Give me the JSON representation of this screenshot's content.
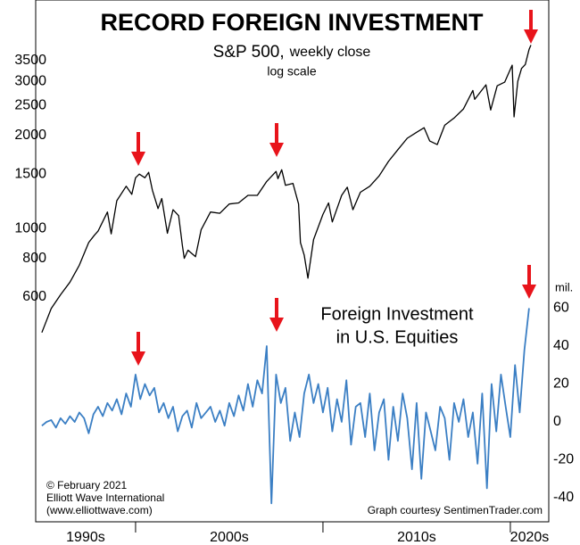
{
  "chart_data": {
    "type": "line",
    "title": "RECORD FOREIGN INVESTMENT",
    "subtitle": [
      "S&P 500,",
      "weekly close"
    ],
    "scale_note": "log scale",
    "annotation": [
      "Foreign Investment",
      "in U.S. Equities"
    ],
    "y2_unit": "mil.",
    "credits": [
      "© February 2021",
      "Elliott Wave International",
      "(www.elliottwave.com)"
    ],
    "source": "Graph courtesy SentimenTrader.com",
    "decades": [
      {
        "value": 1990,
        "label": "1990s"
      },
      {
        "value": 2000,
        "label": "2000s"
      },
      {
        "value": 2010,
        "label": "2010s"
      },
      {
        "value": 2020,
        "label": "2020s"
      }
    ],
    "xlim": [
      1994.67,
      2022.05
    ],
    "xticks": [
      2000,
      2010,
      2020
    ],
    "ylim": [
      112,
      5500
    ],
    "log_scale": true,
    "yticks": [
      600,
      800,
      1000,
      1500,
      2000,
      2500,
      3000,
      3500
    ],
    "y2lim": [
      -52.7,
      222.6
    ],
    "y2ticks": [
      -40,
      -20,
      0,
      20,
      40,
      60
    ],
    "series": [
      {
        "color": "#000000",
        "axis": "y",
        "x": [
          1995.0,
          1995.5,
          1996.0,
          1996.5,
          1997.0,
          1997.5,
          1997.8,
          1998.0,
          1998.5,
          1998.7,
          1999.0,
          1999.5,
          1999.8,
          2000.0,
          2000.2,
          2000.5,
          2000.7,
          2000.9,
          2001.2,
          2001.4,
          2001.7,
          2002.0,
          2002.3,
          2002.5,
          2002.6,
          2002.8,
          2003.2,
          2003.5,
          2004.0,
          2004.5,
          2005.0,
          2005.5,
          2006.0,
          2006.5,
          2007.0,
          2007.5,
          2007.6,
          2007.8,
          2008.0,
          2008.4,
          2008.7,
          2008.8,
          2009.0,
          2009.2,
          2009.5,
          2010.0,
          2010.3,
          2010.5,
          2011.0,
          2011.3,
          2011.6,
          2012.0,
          2012.5,
          2013.0,
          2013.5,
          2014.0,
          2014.5,
          2015.0,
          2015.4,
          2015.7,
          2016.1,
          2016.5,
          2017.0,
          2017.5,
          2018.0,
          2018.1,
          2018.7,
          2018.95,
          2019.3,
          2019.7,
          2020.0,
          2020.1,
          2020.2,
          2020.4,
          2020.6,
          2020.8,
          2021.0,
          2021.1
        ],
        "values": [
          460,
          550,
          610,
          670,
          760,
          900,
          950,
          980,
          1130,
          960,
          1230,
          1370,
          1290,
          1460,
          1500,
          1460,
          1520,
          1330,
          1160,
          1250,
          965,
          1150,
          1100,
          880,
          800,
          850,
          810,
          990,
          1130,
          1120,
          1200,
          1210,
          1280,
          1280,
          1420,
          1530,
          1450,
          1550,
          1380,
          1400,
          1200,
          900,
          820,
          690,
          920,
          1110,
          1210,
          1050,
          1280,
          1360,
          1150,
          1310,
          1370,
          1480,
          1650,
          1800,
          1960,
          2050,
          2120,
          1920,
          1870,
          2160,
          2280,
          2440,
          2800,
          2620,
          2920,
          2420,
          2900,
          2980,
          3280,
          3380,
          2300,
          3000,
          3300,
          3400,
          3800,
          3930
        ]
      },
      {
        "color": "#3b7fc4",
        "axis": "y2",
        "x": [
          1995.0,
          1995.25,
          1995.5,
          1995.75,
          1996.0,
          1996.25,
          1996.5,
          1996.75,
          1997.0,
          1997.25,
          1997.5,
          1997.75,
          1998.0,
          1998.25,
          1998.5,
          1998.75,
          1999.0,
          1999.25,
          1999.5,
          1999.75,
          2000.0,
          2000.25,
          2000.5,
          2000.75,
          2001.0,
          2001.25,
          2001.5,
          2001.75,
          2002.0,
          2002.25,
          2002.5,
          2002.75,
          2003.0,
          2003.25,
          2003.5,
          2003.75,
          2004.0,
          2004.25,
          2004.5,
          2004.75,
          2005.0,
          2005.25,
          2005.5,
          2005.75,
          2006.0,
          2006.25,
          2006.5,
          2006.75,
          2007.0,
          2007.25,
          2007.5,
          2007.75,
          2008.0,
          2008.25,
          2008.5,
          2008.75,
          2009.0,
          2009.25,
          2009.5,
          2009.75,
          2010.0,
          2010.25,
          2010.5,
          2010.75,
          2011.0,
          2011.25,
          2011.5,
          2011.75,
          2012.0,
          2012.25,
          2012.5,
          2012.75,
          2013.0,
          2013.25,
          2013.5,
          2013.75,
          2014.0,
          2014.25,
          2014.5,
          2014.75,
          2015.0,
          2015.25,
          2015.5,
          2015.75,
          2016.0,
          2016.25,
          2016.5,
          2016.75,
          2017.0,
          2017.25,
          2017.5,
          2017.75,
          2018.0,
          2018.25,
          2018.5,
          2018.75,
          2019.0,
          2019.25,
          2019.5,
          2019.75,
          2020.0,
          2020.25,
          2020.5,
          2020.75,
          2021.0
        ],
        "values": [
          -2,
          0,
          1,
          -3,
          2,
          -1,
          3,
          0,
          5,
          2,
          -6,
          4,
          8,
          3,
          10,
          6,
          12,
          4,
          15,
          8,
          25,
          12,
          20,
          14,
          18,
          5,
          10,
          2,
          8,
          -5,
          3,
          6,
          -3,
          10,
          2,
          5,
          8,
          0,
          6,
          -2,
          10,
          3,
          14,
          6,
          20,
          8,
          22,
          15,
          40,
          -43,
          25,
          10,
          18,
          -10,
          5,
          -8,
          15,
          25,
          10,
          20,
          5,
          18,
          -5,
          12,
          0,
          22,
          -12,
          8,
          10,
          -8,
          15,
          -15,
          5,
          12,
          -20,
          8,
          -10,
          15,
          2,
          -25,
          10,
          -30,
          5,
          -5,
          -15,
          8,
          2,
          -20,
          10,
          0,
          12,
          -8,
          5,
          -22,
          15,
          -35,
          20,
          -5,
          25,
          8,
          -8,
          30,
          5,
          38,
          60
        ]
      }
    ]
  }
}
